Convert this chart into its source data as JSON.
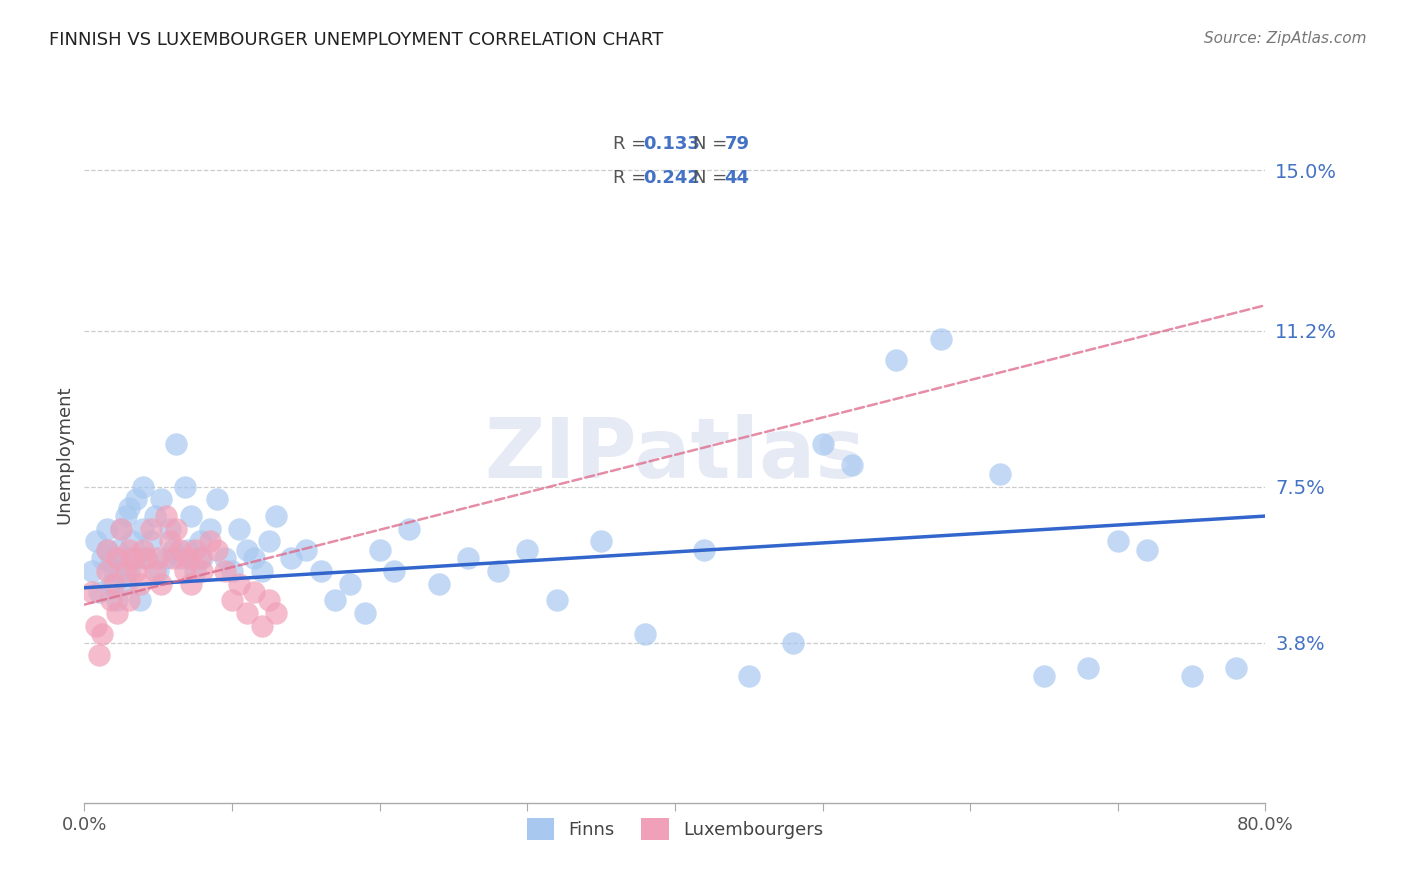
{
  "title": "FINNISH VS LUXEMBOURGER UNEMPLOYMENT CORRELATION CHART",
  "source": "Source: ZipAtlas.com",
  "ylabel": "Unemployment",
  "ytick_labels": [
    "15.0%",
    "11.2%",
    "7.5%",
    "3.8%"
  ],
  "ytick_values": [
    0.15,
    0.112,
    0.075,
    0.038
  ],
  "xmin": 0.0,
  "xmax": 0.8,
  "ymin": 0.0,
  "ymax": 0.165,
  "legend_r_finns": "0.133",
  "legend_n_finns": "79",
  "legend_r_lux": "0.242",
  "legend_n_lux": "44",
  "color_finns": "#A8C8F0",
  "color_lux": "#F0A0B8",
  "color_trendline_finns": "#3366CC",
  "color_trendline_lux": "#DD6688",
  "watermark": "ZIPatlas",
  "finns_trendline_x": [
    0.0,
    0.8
  ],
  "finns_trendline_y": [
    0.051,
    0.068
  ],
  "lux_trendline_x": [
    0.0,
    0.8
  ],
  "lux_trendline_y": [
    0.047,
    0.118
  ],
  "finns_x": [
    0.005,
    0.008,
    0.01,
    0.012,
    0.015,
    0.015,
    0.018,
    0.018,
    0.02,
    0.022,
    0.022,
    0.025,
    0.025,
    0.028,
    0.028,
    0.03,
    0.03,
    0.032,
    0.035,
    0.035,
    0.038,
    0.04,
    0.04,
    0.042,
    0.045,
    0.048,
    0.05,
    0.052,
    0.055,
    0.058,
    0.06,
    0.062,
    0.065,
    0.068,
    0.07,
    0.072,
    0.075,
    0.078,
    0.08,
    0.085,
    0.09,
    0.095,
    0.1,
    0.105,
    0.11,
    0.115,
    0.12,
    0.125,
    0.13,
    0.14,
    0.15,
    0.16,
    0.17,
    0.18,
    0.19,
    0.2,
    0.21,
    0.22,
    0.24,
    0.26,
    0.28,
    0.3,
    0.32,
    0.35,
    0.38,
    0.42,
    0.45,
    0.48,
    0.5,
    0.52,
    0.55,
    0.58,
    0.62,
    0.65,
    0.68,
    0.7,
    0.72,
    0.75,
    0.78
  ],
  "finns_y": [
    0.055,
    0.062,
    0.05,
    0.058,
    0.06,
    0.065,
    0.052,
    0.057,
    0.055,
    0.06,
    0.048,
    0.065,
    0.058,
    0.052,
    0.068,
    0.055,
    0.07,
    0.062,
    0.058,
    0.072,
    0.048,
    0.065,
    0.075,
    0.058,
    0.062,
    0.068,
    0.055,
    0.072,
    0.058,
    0.065,
    0.06,
    0.085,
    0.058,
    0.075,
    0.06,
    0.068,
    0.055,
    0.062,
    0.058,
    0.065,
    0.072,
    0.058,
    0.055,
    0.065,
    0.06,
    0.058,
    0.055,
    0.062,
    0.068,
    0.058,
    0.06,
    0.055,
    0.048,
    0.052,
    0.045,
    0.06,
    0.055,
    0.065,
    0.052,
    0.058,
    0.055,
    0.06,
    0.048,
    0.062,
    0.04,
    0.06,
    0.03,
    0.038,
    0.085,
    0.08,
    0.105,
    0.11,
    0.078,
    0.03,
    0.032,
    0.062,
    0.06,
    0.03,
    0.032
  ],
  "lux_x": [
    0.005,
    0.008,
    0.01,
    0.012,
    0.015,
    0.015,
    0.018,
    0.02,
    0.022,
    0.022,
    0.025,
    0.028,
    0.03,
    0.03,
    0.032,
    0.035,
    0.038,
    0.04,
    0.042,
    0.045,
    0.048,
    0.05,
    0.052,
    0.055,
    0.058,
    0.06,
    0.062,
    0.065,
    0.068,
    0.07,
    0.072,
    0.075,
    0.078,
    0.08,
    0.085,
    0.09,
    0.095,
    0.1,
    0.105,
    0.11,
    0.115,
    0.12,
    0.125,
    0.13
  ],
  "lux_y": [
    0.05,
    0.042,
    0.035,
    0.04,
    0.06,
    0.055,
    0.048,
    0.052,
    0.058,
    0.045,
    0.065,
    0.055,
    0.06,
    0.048,
    0.058,
    0.055,
    0.052,
    0.06,
    0.058,
    0.065,
    0.055,
    0.058,
    0.052,
    0.068,
    0.062,
    0.058,
    0.065,
    0.06,
    0.055,
    0.058,
    0.052,
    0.06,
    0.058,
    0.055,
    0.062,
    0.06,
    0.055,
    0.048,
    0.052,
    0.045,
    0.05,
    0.042,
    0.048,
    0.045
  ]
}
